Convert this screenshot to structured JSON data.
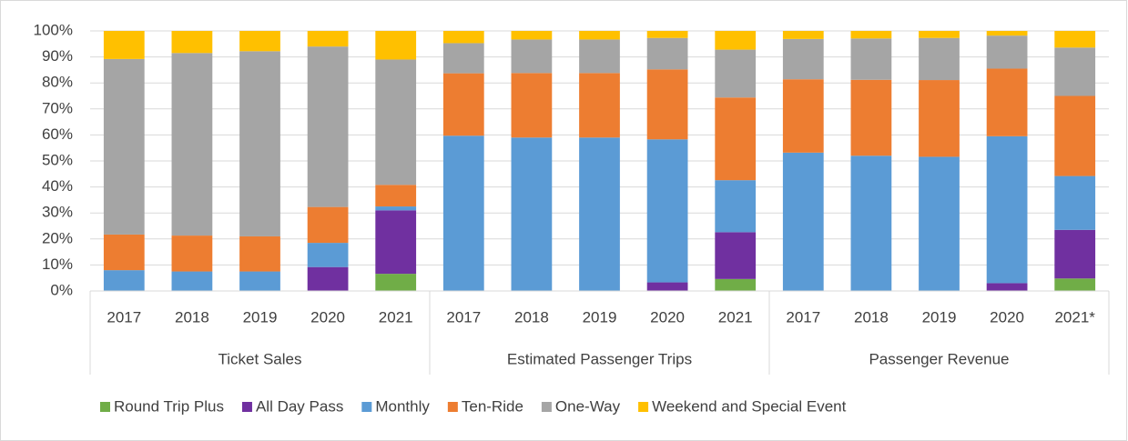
{
  "chart_data": {
    "type": "stacked-bar",
    "categories": [
      "2017",
      "2018",
      "2019",
      "2020",
      "2021",
      "2017",
      "2018",
      "2019",
      "2020",
      "2021",
      "2017",
      "2018",
      "2019",
      "2020",
      "2021*"
    ],
    "groups": [
      "Ticket Sales",
      "Estimated Passenger Trips",
      "Passenger Revenue"
    ],
    "series": [
      {
        "name": "Round Trip Plus",
        "color": "#70ad47",
        "values": [
          0,
          0,
          0,
          0,
          6.6,
          0,
          0,
          0,
          0,
          4.6,
          0,
          0,
          0,
          0,
          4.8
        ]
      },
      {
        "name": "All Day Pass",
        "color": "#7030a0",
        "values": [
          0,
          0,
          0,
          9.2,
          24.4,
          0,
          0,
          0,
          3.3,
          18,
          0,
          0,
          0,
          3,
          18.7
        ]
      },
      {
        "name": "Monthly",
        "color": "#5b9bd5",
        "values": [
          8,
          7.5,
          7.5,
          9.3,
          1.5,
          59.7,
          59,
          59,
          55,
          20,
          53.2,
          52,
          51.6,
          56.5,
          20.7
        ]
      },
      {
        "name": "Ten-Ride",
        "color": "#ed7d31",
        "values": [
          13.7,
          13.8,
          13.5,
          13.8,
          8.3,
          24,
          24.8,
          24.8,
          26.9,
          31.8,
          28.2,
          29.2,
          29.5,
          26,
          30.8
        ]
      },
      {
        "name": "One-Way",
        "color": "#a5a5a5",
        "values": [
          67.5,
          70.2,
          71.2,
          61.7,
          48.2,
          11.6,
          12.9,
          12.9,
          12.1,
          18.4,
          15.5,
          15.9,
          16.2,
          12.7,
          18.6
        ]
      },
      {
        "name": "Weekend and Special Event",
        "color": "#ffc000",
        "values": [
          10.8,
          8.5,
          7.8,
          6,
          11,
          4.7,
          3.3,
          3.3,
          2.7,
          7.2,
          3.1,
          2.9,
          2.7,
          1.8,
          6.4
        ]
      }
    ],
    "ylim": [
      0,
      100
    ],
    "yticks": [
      {
        "value": 0,
        "label": "0%"
      },
      {
        "value": 10,
        "label": "10%"
      },
      {
        "value": 20,
        "label": "20%"
      },
      {
        "value": 30,
        "label": "30%"
      },
      {
        "value": 40,
        "label": "40%"
      },
      {
        "value": 50,
        "label": "50%"
      },
      {
        "value": 60,
        "label": "60%"
      },
      {
        "value": 70,
        "label": "70%"
      },
      {
        "value": 80,
        "label": "80%"
      },
      {
        "value": 90,
        "label": "90%"
      },
      {
        "value": 100,
        "label": "100%"
      }
    ],
    "grid": true,
    "legend": "bottom"
  }
}
